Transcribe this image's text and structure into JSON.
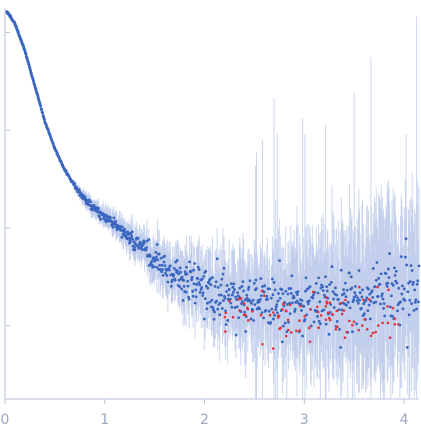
{
  "chart_data": {
    "type": "scatter",
    "title": "",
    "xlabel": "",
    "ylabel": "",
    "xlim": [
      0,
      4.15
    ],
    "x_ticks": [
      0,
      1,
      2,
      3,
      4
    ],
    "x_tick_labels": [
      "0",
      "1",
      "2",
      "3",
      "4"
    ],
    "y_scale": "log",
    "y_tick_count": 4,
    "y_tick_labels_shown": false,
    "grid": false,
    "legend": "none",
    "colors": {
      "points": "#3a66bf",
      "error_bars": "#b9c8ea",
      "outliers": "#e0333a",
      "axis": "#b7c2db",
      "tick_labels": "#9aa7c2"
    },
    "series": [
      {
        "marker": "point",
        "with_error_bars": true,
        "profile": [
          [
            0.02,
            0.99
          ],
          [
            0.1,
            0.96
          ],
          [
            0.2,
            0.89
          ],
          [
            0.3,
            0.8
          ],
          [
            0.4,
            0.71
          ],
          [
            0.5,
            0.64
          ],
          [
            0.6,
            0.585
          ],
          [
            0.7,
            0.545
          ],
          [
            0.8,
            0.51
          ],
          [
            0.9,
            0.485
          ],
          [
            1.0,
            0.465
          ],
          [
            1.1,
            0.445
          ],
          [
            1.2,
            0.425
          ],
          [
            1.3,
            0.4
          ],
          [
            1.4,
            0.38
          ],
          [
            1.5,
            0.36
          ],
          [
            1.6,
            0.34
          ],
          [
            1.7,
            0.32
          ],
          [
            1.8,
            0.305
          ],
          [
            1.9,
            0.295
          ],
          [
            2.0,
            0.28
          ],
          [
            2.2,
            0.265
          ],
          [
            2.4,
            0.255
          ],
          [
            2.6,
            0.25
          ],
          [
            2.8,
            0.245
          ],
          [
            3.0,
            0.245
          ],
          [
            3.2,
            0.25
          ],
          [
            3.4,
            0.255
          ],
          [
            3.6,
            0.262
          ],
          [
            3.8,
            0.268
          ],
          [
            4.0,
            0.275
          ],
          [
            4.15,
            0.28
          ]
        ]
      }
    ]
  }
}
